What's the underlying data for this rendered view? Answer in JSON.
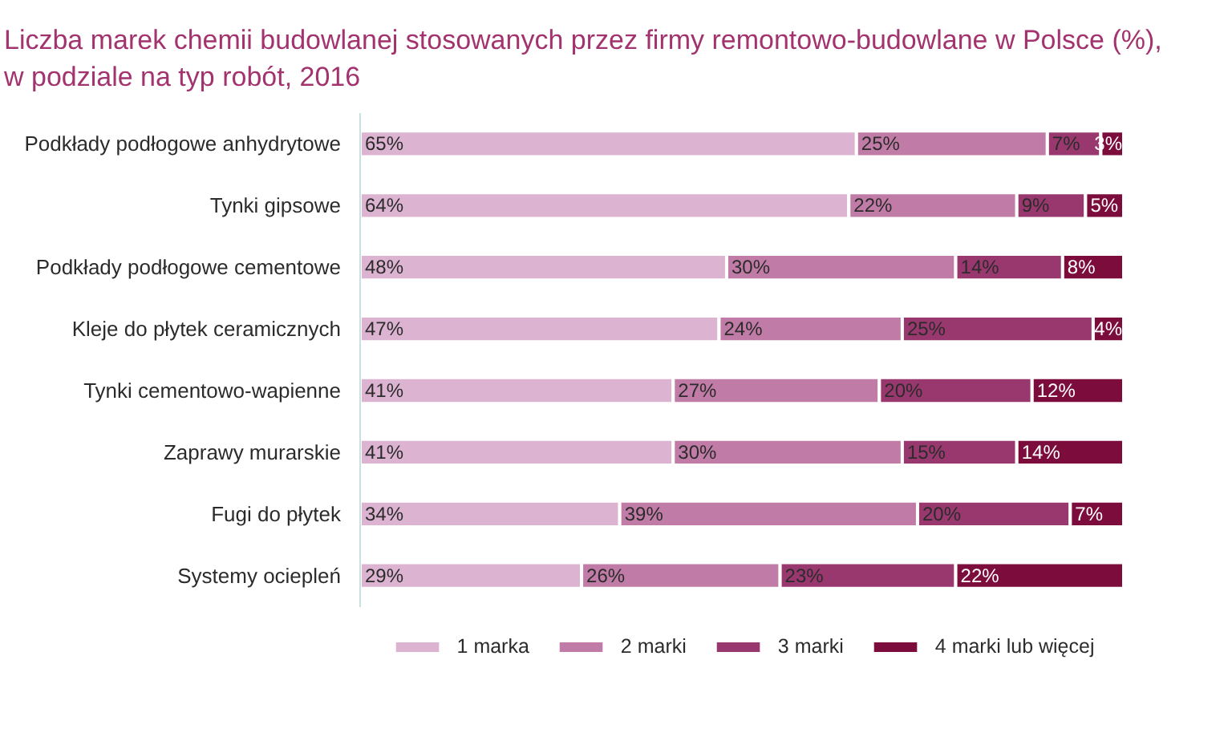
{
  "chart_data": {
    "type": "bar",
    "orientation": "horizontal",
    "stacked": true,
    "title": "Liczba marek chemii budowlanej stosowanych przez firmy remontowo-budowlane w Polsce (%), w podziale na typ robót, 2016",
    "categories": [
      "Podkłady podłogowe anhydrytowe",
      "Tynki gipsowe",
      "Podkłady podłogowe cementowe",
      "Kleje do płytek ceramicznych",
      "Tynki cementowo-wapienne",
      "Zaprawy murarskie",
      "Fugi do płytek",
      "Systemy ociepleń"
    ],
    "xlim": [
      0,
      100
    ],
    "tick_labels": "y",
    "legend": "bottom",
    "series": [
      {
        "name": "1 marka",
        "color": "#dcb4d2",
        "values": [
          65,
          64,
          48,
          47,
          41,
          41,
          34,
          29
        ],
        "value_labels": [
          "65%",
          "64%",
          "48%",
          "47%",
          "41%",
          "41%",
          "34%",
          "29%"
        ]
      },
      {
        "name": "2 marki",
        "color": "#c07ba6",
        "values": [
          25,
          22,
          30,
          24,
          27,
          30,
          39,
          26
        ],
        "value_labels": [
          "25%",
          "22%",
          "30%",
          "24%",
          "27%",
          "30%",
          "39%",
          "26%"
        ]
      },
      {
        "name": "3 marki",
        "color": "#98386e",
        "values": [
          7,
          9,
          14,
          25,
          20,
          15,
          20,
          23
        ],
        "value_labels": [
          "7%",
          "9%",
          "14%",
          "25%",
          "20%",
          "15%",
          "20%",
          "23%"
        ]
      },
      {
        "name": "4 marki lub więcej",
        "color": "#7b0c3c",
        "values": [
          3,
          5,
          8,
          4,
          12,
          14,
          7,
          22
        ],
        "value_labels": [
          "3%",
          "5%",
          "8%",
          "4%",
          "12%",
          "14%",
          "7%",
          "22%"
        ]
      }
    ]
  }
}
